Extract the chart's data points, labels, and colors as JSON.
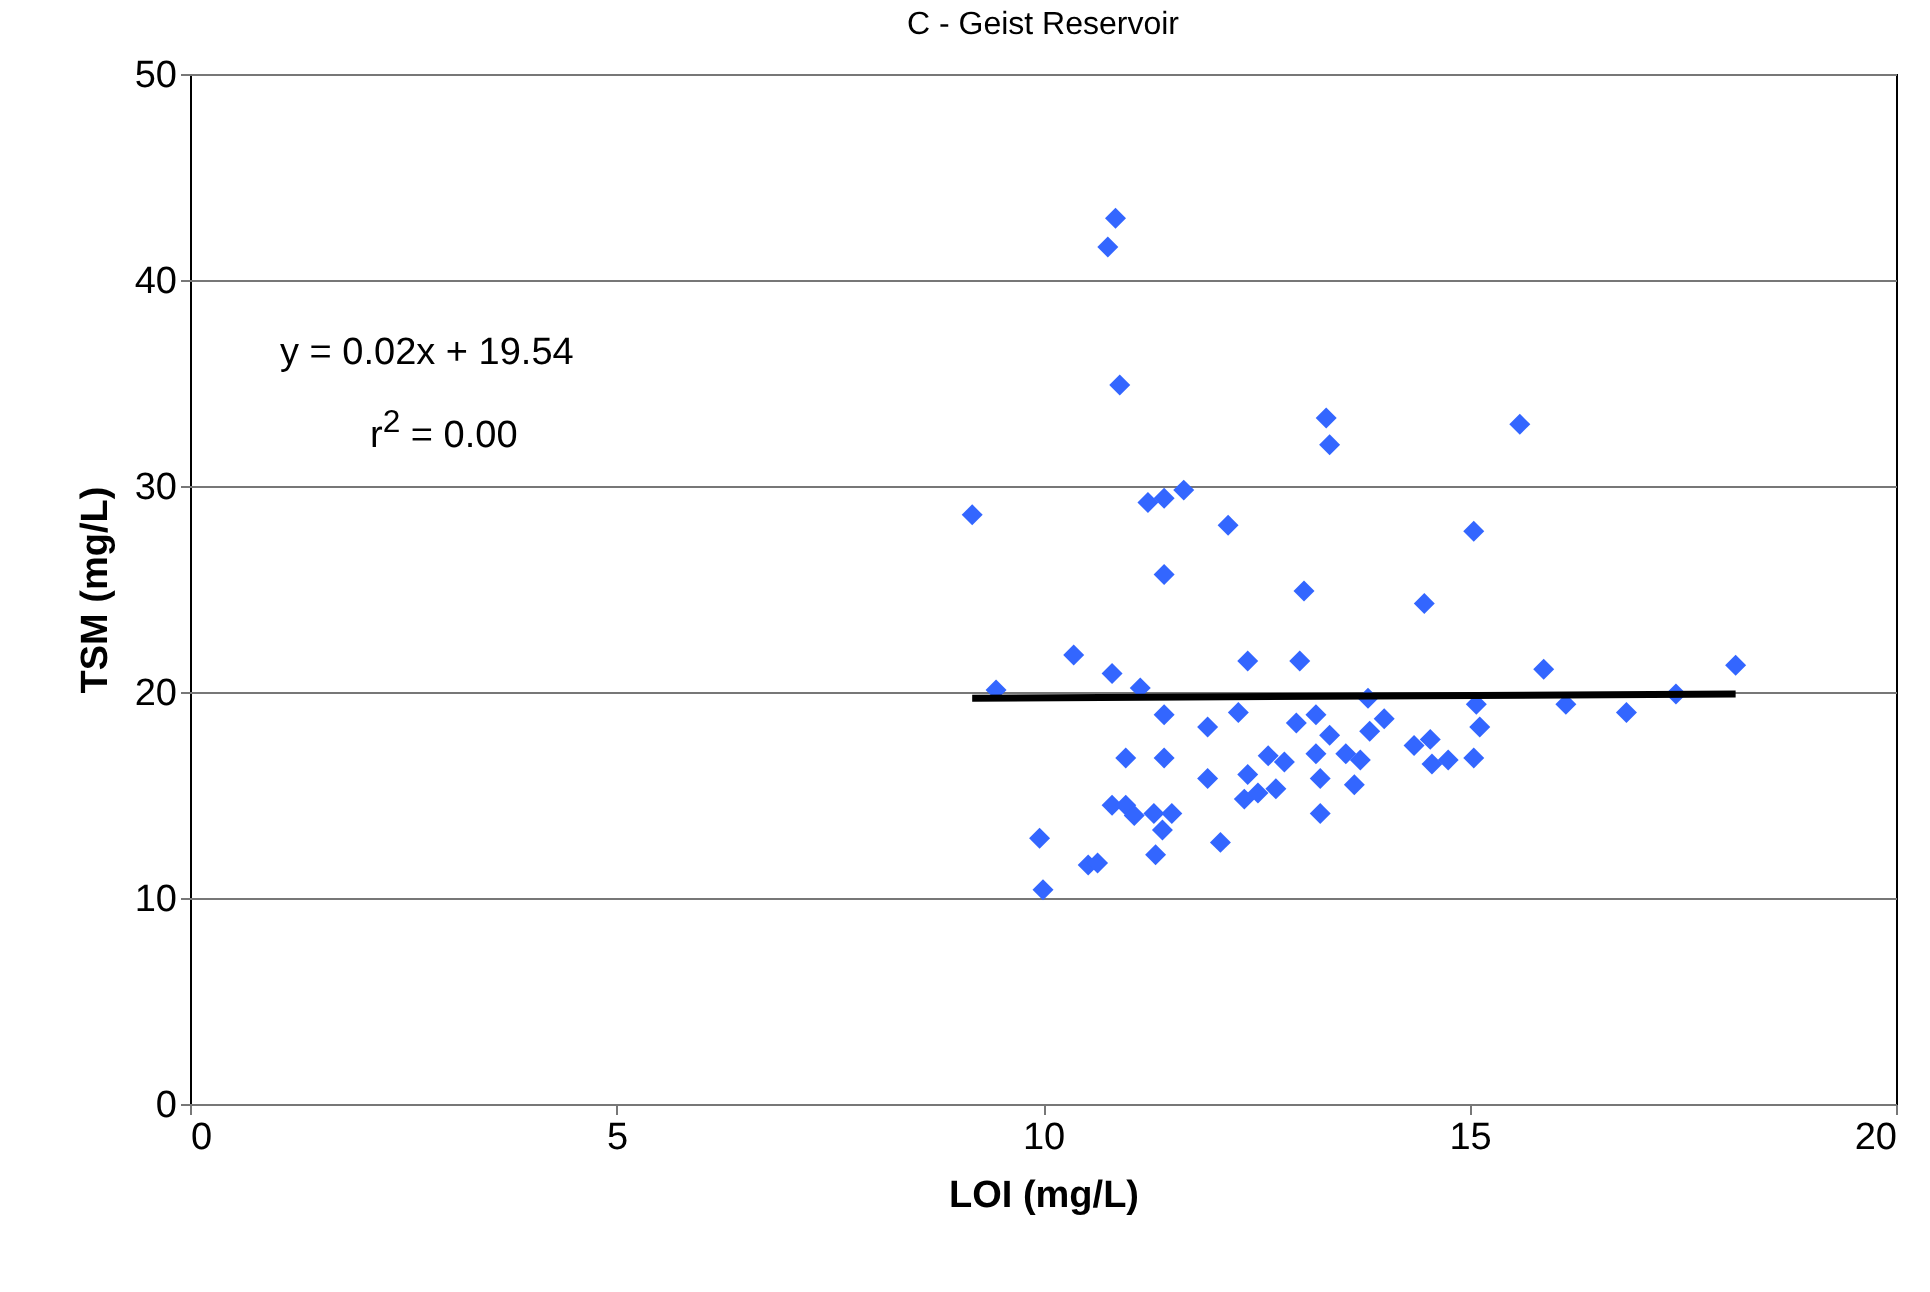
{
  "chart_data": {
    "type": "scatter",
    "title": "C - Geist Reservoir",
    "xlabel": "LOI (mg/L)",
    "ylabel": "TSM (mg/L)",
    "annotations": [
      "y = 0.02x + 19.54",
      "r$^{2}$ = 0.00"
    ],
    "xlim": [
      0,
      20
    ],
    "xticks": [
      0,
      5,
      10,
      15,
      20
    ],
    "ylim": [
      0,
      50
    ],
    "yticks": [
      0,
      10,
      20,
      30,
      40,
      50
    ],
    "grid": "y",
    "series": [
      {
        "color": "#3366ff",
        "marker": "diamond",
        "x": [
          9.17,
          9.45,
          9.96,
          10.0,
          10.36,
          10.53,
          10.64,
          10.76,
          10.85,
          10.81,
          10.81,
          10.9,
          10.97,
          10.97,
          11.07,
          11.14,
          11.23,
          11.3,
          11.32,
          11.4,
          11.42,
          11.42,
          11.42,
          11.42,
          11.51,
          11.65,
          11.93,
          11.93,
          12.08,
          12.17,
          12.29,
          12.4,
          12.36,
          12.4,
          12.52,
          12.64,
          12.73,
          12.83,
          12.97,
          13.01,
          13.06,
          13.2,
          13.2,
          13.25,
          13.25,
          13.32,
          13.36,
          13.36,
          13.55,
          13.65,
          13.72,
          13.81,
          13.83,
          14.0,
          14.35,
          14.47,
          14.54,
          14.56,
          14.75,
          15.05,
          15.05,
          15.08,
          15.12,
          15.59,
          15.87,
          16.13,
          16.84,
          17.42,
          18.12
        ],
        "values": [
          28.6,
          20.1,
          12.9,
          10.4,
          21.8,
          11.6,
          11.7,
          41.6,
          43.0,
          20.9,
          14.5,
          34.9,
          14.5,
          16.8,
          14.0,
          20.2,
          29.2,
          14.1,
          12.1,
          13.3,
          29.4,
          25.7,
          18.9,
          16.8,
          14.1,
          29.8,
          18.3,
          15.8,
          12.7,
          28.1,
          19.0,
          21.5,
          14.8,
          16.0,
          15.1,
          16.9,
          15.3,
          16.6,
          18.5,
          21.5,
          24.9,
          18.9,
          17.0,
          15.8,
          14.1,
          33.3,
          32.0,
          17.9,
          17.0,
          15.5,
          16.7,
          19.7,
          18.1,
          18.7,
          17.4,
          24.3,
          17.7,
          16.5,
          16.7,
          27.8,
          16.8,
          19.4,
          18.3,
          33.0,
          21.1,
          19.4,
          19.0,
          19.9,
          21.3
        ]
      },
      {
        "type": "line",
        "color": "#000000",
        "x": [
          9.17,
          18.12
        ],
        "values": [
          19.7,
          19.9
        ]
      }
    ]
  }
}
